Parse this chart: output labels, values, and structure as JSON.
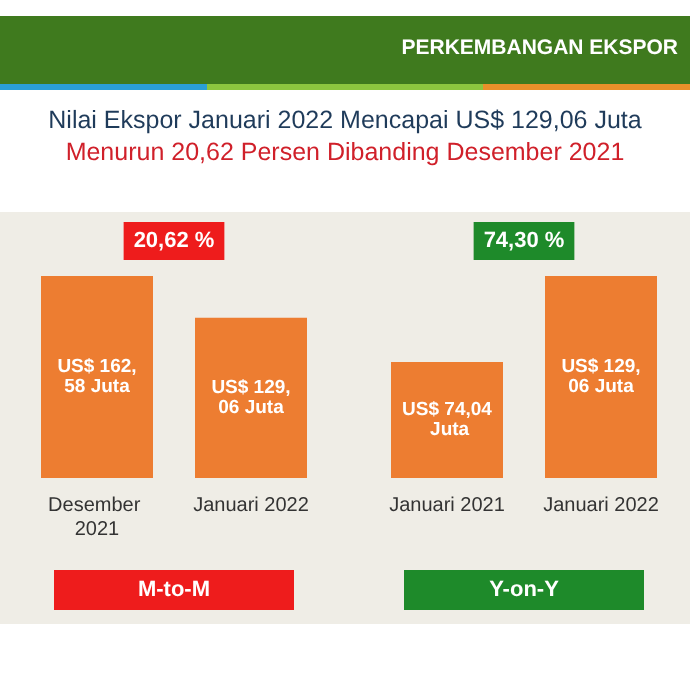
{
  "chart_data": [
    {
      "type": "bar",
      "title": "Nilai Ekspor Januari 2022 Mencapai US$ 129,06 Juta",
      "subtitle": "Menurun 20,62 Persen Dibanding Desember 2021",
      "annotations": [
        "PERKEMBANGAN EKSPOR",
        "20,62 %"
      ],
      "categories": [
        "Desember 2021",
        "Januari 2022"
      ],
      "values": [
        162.58,
        129.06
      ],
      "value_labels": [
        "US$ 162,58 Juta",
        "US$ 129,06 Juta"
      ],
      "color": "#ed7d31",
      "xlabel": "M-to-M"
    },
    {
      "type": "bar",
      "annotations": [
        "74,30 %"
      ],
      "categories": [
        "Januari 2021",
        "Januari 2022"
      ],
      "values": [
        74.04,
        129.06
      ],
      "value_labels": [
        "US$ 74,04 Juta",
        "US$ 129,06 Juta"
      ],
      "color": "#ed7d31",
      "xlabel": "Y-on-Y"
    }
  ]
}
